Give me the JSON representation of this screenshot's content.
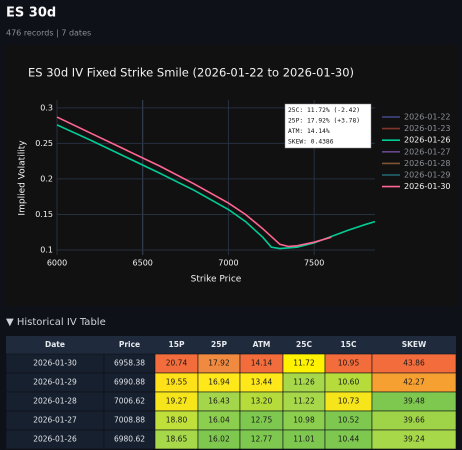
{
  "header": {
    "title": "ES 30d",
    "subtitle": "476 records | 7 dates"
  },
  "chart_data": {
    "type": "line",
    "title": "ES 30d IV Fixed Strike Smile (2026-01-22 to 2026-01-30)",
    "x_label": "Strike Price",
    "y_label": "Implied Volatility",
    "xlim": [
      6000,
      7855
    ],
    "ylim": [
      0.093,
      0.311
    ],
    "xticks": [
      6000,
      6500,
      7000,
      7500
    ],
    "yticks": [
      0.1,
      0.15,
      0.2,
      0.25,
      0.3
    ],
    "grid": true,
    "annotation": [
      "25C: 11.72% (-2.42)",
      "25P: 17.92% (+3.78)",
      "ATM: 14.14%",
      "SKEW: 0.4386"
    ],
    "series": [
      {
        "name": "2026-01-22",
        "color": "#5a5fc0",
        "visible": false
      },
      {
        "name": "2026-01-23",
        "color": "#b0453a",
        "visible": false
      },
      {
        "name": "2026-01-26",
        "color": "#00cc96",
        "visible": true,
        "x": [
          6000,
          6200,
          6400,
          6600,
          6800,
          7000,
          7100,
          7200,
          7250,
          7300,
          7400,
          7500,
          7600,
          7700,
          7800,
          7855
        ],
        "values": [
          0.276,
          0.254,
          0.231,
          0.208,
          0.184,
          0.157,
          0.14,
          0.118,
          0.104,
          0.102,
          0.104,
          0.11,
          0.119,
          0.128,
          0.136,
          0.14
        ]
      },
      {
        "name": "2026-01-27",
        "color": "#8a5fc0",
        "visible": false
      },
      {
        "name": "2026-01-28",
        "color": "#b07040",
        "visible": false
      },
      {
        "name": "2026-01-29",
        "color": "#2a8fa0",
        "visible": false
      },
      {
        "name": "2026-01-30",
        "color": "#ff6692",
        "visible": true,
        "x": [
          6000,
          6200,
          6400,
          6600,
          6800,
          7000,
          7100,
          7200,
          7300,
          7350,
          7400,
          7500,
          7600
        ],
        "values": [
          0.287,
          0.264,
          0.241,
          0.218,
          0.193,
          0.166,
          0.15,
          0.13,
          0.108,
          0.105,
          0.106,
          0.111,
          0.118
        ]
      }
    ]
  },
  "section": {
    "title": "▼ Historical IV Table"
  },
  "table": {
    "columns": [
      "Date",
      "Price",
      "15P",
      "25P",
      "ATM",
      "25C",
      "15C",
      "SKEW"
    ],
    "rows": [
      [
        "2026-01-30",
        "6958.38",
        "20.74",
        "17.92",
        "14.14",
        "11.72",
        "10.95",
        "43.86"
      ],
      [
        "2026-01-29",
        "6990.88",
        "19.55",
        "16.94",
        "13.44",
        "11.26",
        "10.60",
        "42.27"
      ],
      [
        "2026-01-28",
        "7006.62",
        "19.27",
        "16.43",
        "13.20",
        "11.22",
        "10.73",
        "39.48"
      ],
      [
        "2026-01-27",
        "7008.88",
        "18.80",
        "16.04",
        "12.75",
        "10.98",
        "10.52",
        "39.66"
      ],
      [
        "2026-01-26",
        "6980.62",
        "18.65",
        "16.02",
        "12.77",
        "11.01",
        "10.44",
        "39.24"
      ]
    ],
    "colors": [
      [
        "#f26c3c",
        "#f08a40",
        "#f26c3c",
        "#fff200",
        "#f26c3c",
        "#f26c3c"
      ],
      [
        "#ffe11a",
        "#ffe81a",
        "#ffe81a",
        "#a6d84a",
        "#b5dc3a",
        "#f5a030"
      ],
      [
        "#f5e51a",
        "#a3d64a",
        "#b5dc3a",
        "#a6d84a",
        "#f5e51a",
        "#7ec850"
      ],
      [
        "#bfe03a",
        "#8ccf4e",
        "#7ec850",
        "#8ccf4e",
        "#7ec850",
        "#9fd448"
      ],
      [
        "#a6d84a",
        "#7ec850",
        "#7ec850",
        "#7ec850",
        "#7ec850",
        "#a6d84a"
      ]
    ]
  }
}
